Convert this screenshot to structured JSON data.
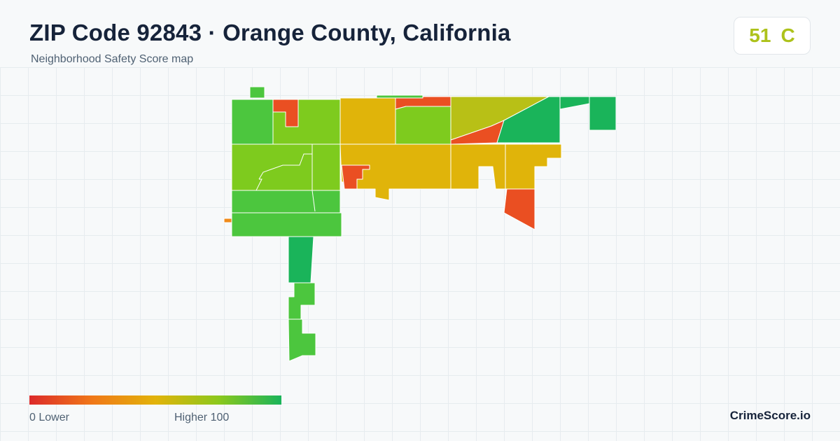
{
  "header": {
    "title": "ZIP Code 92843 · Orange County, California",
    "subtitle": "Neighborhood Safety Score map"
  },
  "score": {
    "value": "51",
    "grade": "C",
    "color": "#adc21b"
  },
  "legend": {
    "min_label": "0  Lower",
    "max_label": "Higher  100",
    "colors": [
      "#dc2a2a",
      "#f07818",
      "#e2b30a",
      "#8cc81c",
      "#1ab45a"
    ]
  },
  "brand": "CrimeScore.io",
  "palette": {
    "red": "#ea4f22",
    "orange": "#f08a1a",
    "yellow": "#e0b40a",
    "olive": "#b8c016",
    "lime": "#7ecb1e",
    "green": "#4cc63e",
    "dark_green": "#1ab45a"
  }
}
